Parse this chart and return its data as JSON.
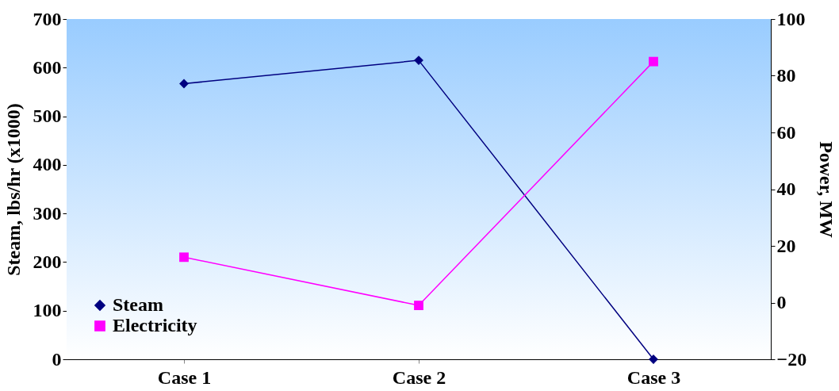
{
  "chart_data": {
    "type": "line",
    "categories": [
      "Case 1",
      "Case 2",
      "Case 3"
    ],
    "ylabel": "Steam, lbs/hr (x1000)",
    "y2label": "Power, MW",
    "ylim": [
      0,
      700
    ],
    "yticks": [
      0,
      100,
      200,
      300,
      400,
      500,
      600,
      700
    ],
    "y2lim": [
      -20,
      100
    ],
    "y2ticks": [
      -20,
      0,
      20,
      40,
      60,
      80,
      100
    ],
    "grid": false,
    "legend": "bottom left",
    "series": [
      {
        "name": "Steam",
        "color": "#000080",
        "marker": "diamond",
        "values": [
          567,
          615,
          0
        ]
      },
      {
        "name": "Electricity",
        "color": "#ff00ff",
        "marker": "square",
        "axis": "y2",
        "values": [
          16,
          -1,
          85
        ]
      }
    ]
  }
}
